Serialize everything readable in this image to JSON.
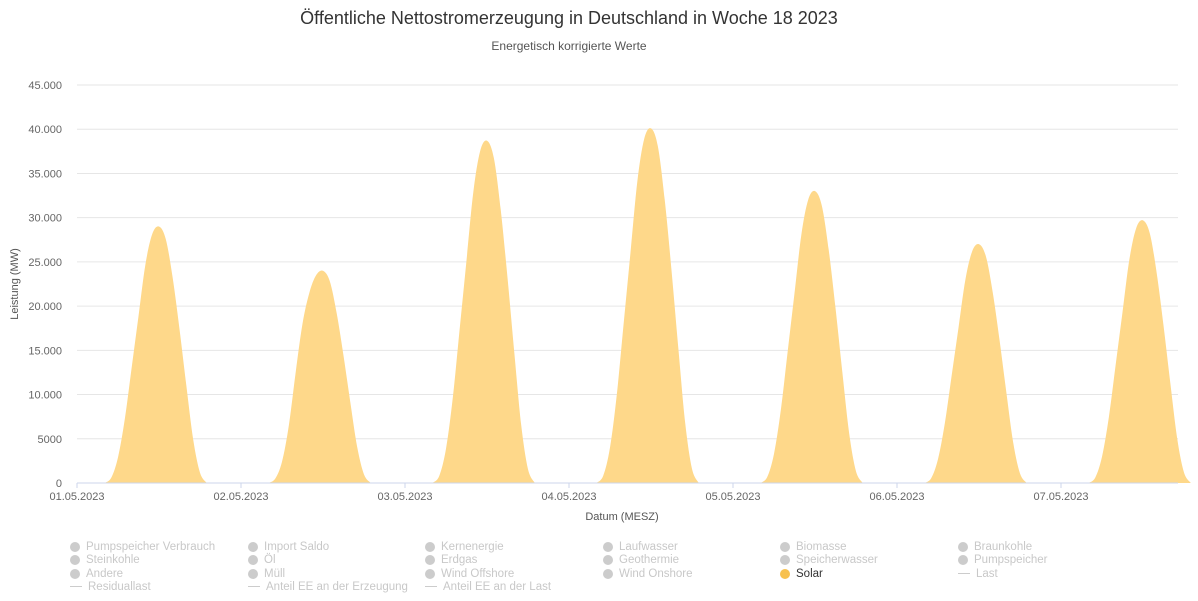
{
  "chart_data": {
    "type": "area",
    "title": "Öffentliche Nettostromerzeugung in Deutschland in Woche 18 2023",
    "subtitle": "Energetisch korrigierte Werte",
    "xlabel": "Datum (MESZ)",
    "ylabel": "Leistung (MW)",
    "ylim": [
      0,
      45000
    ],
    "yticks": [
      0,
      5000,
      10000,
      15000,
      20000,
      25000,
      30000,
      35000,
      40000,
      45000
    ],
    "ytick_labels": [
      "0",
      "5000",
      "10.000",
      "15.000",
      "20.000",
      "25.000",
      "30.000",
      "35.000",
      "40.000",
      "45.000"
    ],
    "xlim_days": [
      0,
      7.72
    ],
    "xtick_labels": [
      "01.05.2023",
      "02.05.2023",
      "03.05.2023",
      "04.05.2023",
      "05.05.2023",
      "06.05.2023",
      "07.05.2023"
    ],
    "grid": true,
    "legend_position": "bottom",
    "series_name": "Solar",
    "color": "#fed88a",
    "hour_start": 4,
    "days": [
      {
        "date": "01.05.2023",
        "values": [
          0,
          580,
          2900,
          7250,
          13050,
          18850,
          24650,
          28130,
          29000,
          27550,
          23200,
          17400,
          11020,
          4930,
          1160,
          0
        ]
      },
      {
        "date": "02.05.2023",
        "values": [
          0,
          480,
          2400,
          6500,
          12500,
          18000,
          21500,
          23500,
          24000,
          22800,
          19200,
          14400,
          9120,
          4080,
          960,
          0
        ]
      },
      {
        "date": "03.05.2023",
        "values": [
          0,
          774,
          3870,
          9675,
          17415,
          25155,
          32895,
          37539,
          38700,
          36765,
          30960,
          23220,
          14706,
          6579,
          1548,
          0
        ]
      },
      {
        "date": "04.05.2023",
        "values": [
          0,
          802,
          4010,
          10025,
          18045,
          26065,
          34085,
          38897,
          40100,
          38095,
          32080,
          24060,
          15238,
          6817,
          1604,
          0
        ]
      },
      {
        "date": "05.05.2023",
        "values": [
          0,
          660,
          3300,
          8250,
          14850,
          21450,
          28050,
          32010,
          33000,
          31350,
          26400,
          19800,
          12540,
          5610,
          1320,
          0
        ]
      },
      {
        "date": "06.05.2023",
        "values": [
          0,
          540,
          2700,
          6750,
          12150,
          17550,
          22950,
          26190,
          27000,
          25650,
          21600,
          16200,
          10260,
          4590,
          1080,
          0
        ]
      },
      {
        "date": "07.05.2023",
        "values": [
          0,
          594,
          2970,
          7425,
          13365,
          19305,
          25245,
          28809,
          29700,
          28215,
          23760,
          17820,
          11286,
          5049,
          1188,
          0
        ]
      }
    ]
  },
  "legend": [
    {
      "label": "Pumpspeicher Verbrauch",
      "kind": "dot",
      "active": false
    },
    {
      "label": "Import Saldo",
      "kind": "dot",
      "active": false
    },
    {
      "label": "Kernenergie",
      "kind": "dot",
      "active": false
    },
    {
      "label": "Laufwasser",
      "kind": "dot",
      "active": false
    },
    {
      "label": "Biomasse",
      "kind": "dot",
      "active": false
    },
    {
      "label": "Braunkohle",
      "kind": "dot",
      "active": false
    },
    {
      "label": "Steinkohle",
      "kind": "dot",
      "active": false
    },
    {
      "label": "Öl",
      "kind": "dot",
      "active": false
    },
    {
      "label": "Erdgas",
      "kind": "dot",
      "active": false
    },
    {
      "label": "Geothermie",
      "kind": "dot",
      "active": false
    },
    {
      "label": "Speicherwasser",
      "kind": "dot",
      "active": false
    },
    {
      "label": "Pumpspeicher",
      "kind": "dot",
      "active": false
    },
    {
      "label": "Andere",
      "kind": "dot",
      "active": false
    },
    {
      "label": "Müll",
      "kind": "dot",
      "active": false
    },
    {
      "label": "Wind Offshore",
      "kind": "dot",
      "active": false
    },
    {
      "label": "Wind Onshore",
      "kind": "dot",
      "active": false
    },
    {
      "label": "Solar",
      "kind": "dot",
      "active": true,
      "color": "#f7c14f"
    },
    {
      "label": "Last",
      "kind": "line",
      "active": false
    },
    {
      "label": "Residuallast",
      "kind": "line",
      "active": false
    },
    {
      "label": "Anteil EE an der Erzeugung",
      "kind": "line",
      "active": false
    },
    {
      "label": "Anteil EE an der Last",
      "kind": "line",
      "active": false
    }
  ]
}
